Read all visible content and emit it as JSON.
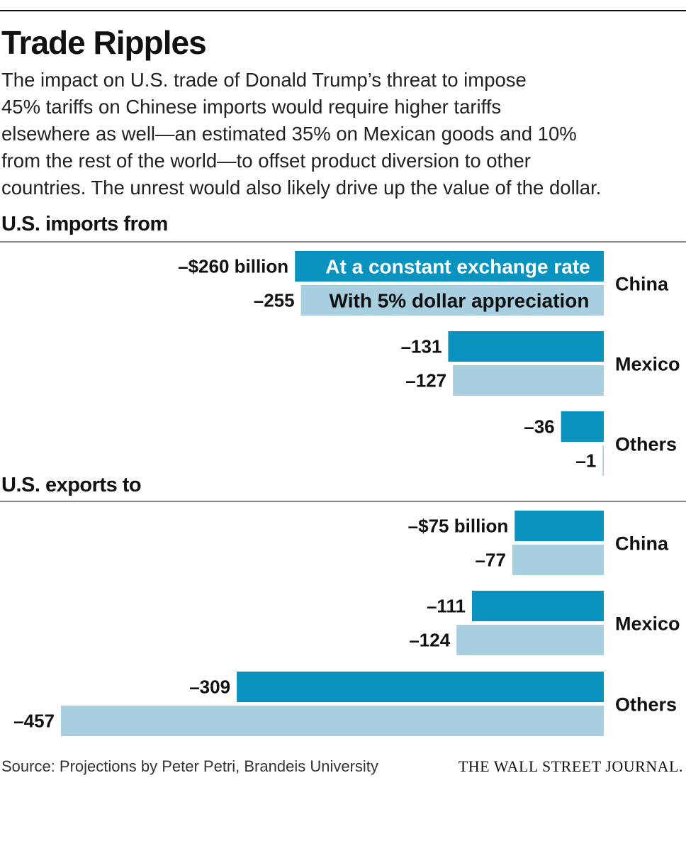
{
  "title": "Trade Ripples",
  "subtitle_lines": [
    "The impact on U.S. trade of Donald Trump’s threat to impose",
    "45% tariffs on Chinese imports would require higher tariffs",
    "elsewhere as well—an estimated 35% on Mexican goods and 10%",
    "from the rest of the world—to offset product diversion to other",
    "countries. The unrest would also likely drive up the value of the dollar."
  ],
  "colors": {
    "dark": "#0a93be",
    "light": "#a8cfdf",
    "text": "#111111"
  },
  "chart_data": [
    {
      "type": "bar",
      "orientation": "horizontal",
      "title": "U.S. imports from",
      "unit": "billion dollars",
      "categories": [
        "China",
        "Mexico",
        "Others"
      ],
      "series": [
        {
          "name": "At a constant exchange rate",
          "values": [
            -260,
            -131,
            -36
          ],
          "labels": [
            "–$260 billion",
            "–131",
            "–36"
          ]
        },
        {
          "name": "With 5% dollar appreciation",
          "values": [
            -255,
            -127,
            -1
          ],
          "labels": [
            "–255",
            "–127",
            "–1"
          ]
        }
      ]
    },
    {
      "type": "bar",
      "orientation": "horizontal",
      "title": "U.S. exports to",
      "unit": "billion dollars",
      "categories": [
        "China",
        "Mexico",
        "Others"
      ],
      "series": [
        {
          "name": "At a constant exchange rate",
          "values": [
            -75,
            -111,
            -309
          ],
          "labels": [
            "–$75 billion",
            "–111",
            "–309"
          ]
        },
        {
          "name": "With 5% dollar appreciation",
          "values": [
            -77,
            -124,
            -457
          ],
          "labels": [
            "–77",
            "–124",
            "–457"
          ]
        }
      ]
    }
  ],
  "source": "Source: Projections by Peter Petri, Brandeis University",
  "publisher": "THE WALL STREET JOURNAL."
}
